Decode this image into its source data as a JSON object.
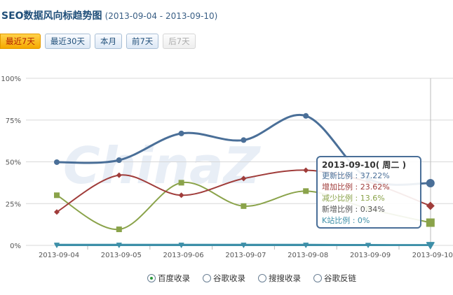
{
  "header": {
    "title": "SEO数据风向标趋势图",
    "range": "(2013-09-04 - 2013-09-10)"
  },
  "buttons": [
    {
      "label": "最近7天",
      "state": "active"
    },
    {
      "label": "最近30天",
      "state": "normal"
    },
    {
      "label": "本月",
      "state": "normal"
    },
    {
      "label": "前7天",
      "state": "normal"
    },
    {
      "label": "后7天",
      "state": "disabled"
    }
  ],
  "watermark": "ChinaZ",
  "tooltip": {
    "date": "2013-09-10( 周二 )",
    "rows": [
      {
        "label": "更新比例",
        "value": "37.22%",
        "color": "#4a6f98"
      },
      {
        "label": "增加比例",
        "value": "23.62%",
        "color": "#a03c3a"
      },
      {
        "label": "减少比例",
        "value": "13.6%",
        "color": "#8aa34a"
      },
      {
        "label": "新增比例",
        "value": "0.34%",
        "color": "#555555"
      },
      {
        "label": "K站比例",
        "value": "0%",
        "color": "#3d8fa8"
      }
    ]
  },
  "legend": [
    {
      "label": "百度收录",
      "selected": true
    },
    {
      "label": "谷歌收录",
      "selected": false
    },
    {
      "label": "搜搜收录",
      "selected": false
    },
    {
      "label": "谷歌反链",
      "selected": false
    }
  ],
  "chart_data": {
    "type": "line",
    "categories": [
      "2013-09-04",
      "2013-09-05",
      "2013-09-06",
      "2013-09-07",
      "2013-09-08",
      "2013-09-09",
      "2013-09-10"
    ],
    "yticks": [
      "0%",
      "25%",
      "50%",
      "75%",
      "100%"
    ],
    "ylim": [
      0,
      100
    ],
    "series": [
      {
        "name": "更新比例",
        "color": "#4a6f98",
        "marker": "circle",
        "values": [
          49.8,
          51,
          67,
          63,
          77.5,
          40,
          37.22
        ]
      },
      {
        "name": "增加比例",
        "color": "#a03c3a",
        "marker": "diamond",
        "values": [
          20,
          42,
          30,
          40,
          45,
          38,
          23.62
        ]
      },
      {
        "name": "减少比例",
        "color": "#8aa34a",
        "marker": "square",
        "values": [
          30,
          9.6,
          37.5,
          23.5,
          32.5,
          22,
          13.6
        ]
      },
      {
        "name": "新增比例",
        "color": "#3d8fa8",
        "marker": "triangle",
        "values": [
          0.5,
          0.5,
          0.5,
          0.5,
          0.5,
          0.4,
          0.34
        ]
      },
      {
        "name": "K站比例",
        "color": "#3d8fa8",
        "marker": "triangle",
        "values": [
          0,
          0,
          0,
          0,
          0,
          0,
          0
        ]
      }
    ]
  }
}
